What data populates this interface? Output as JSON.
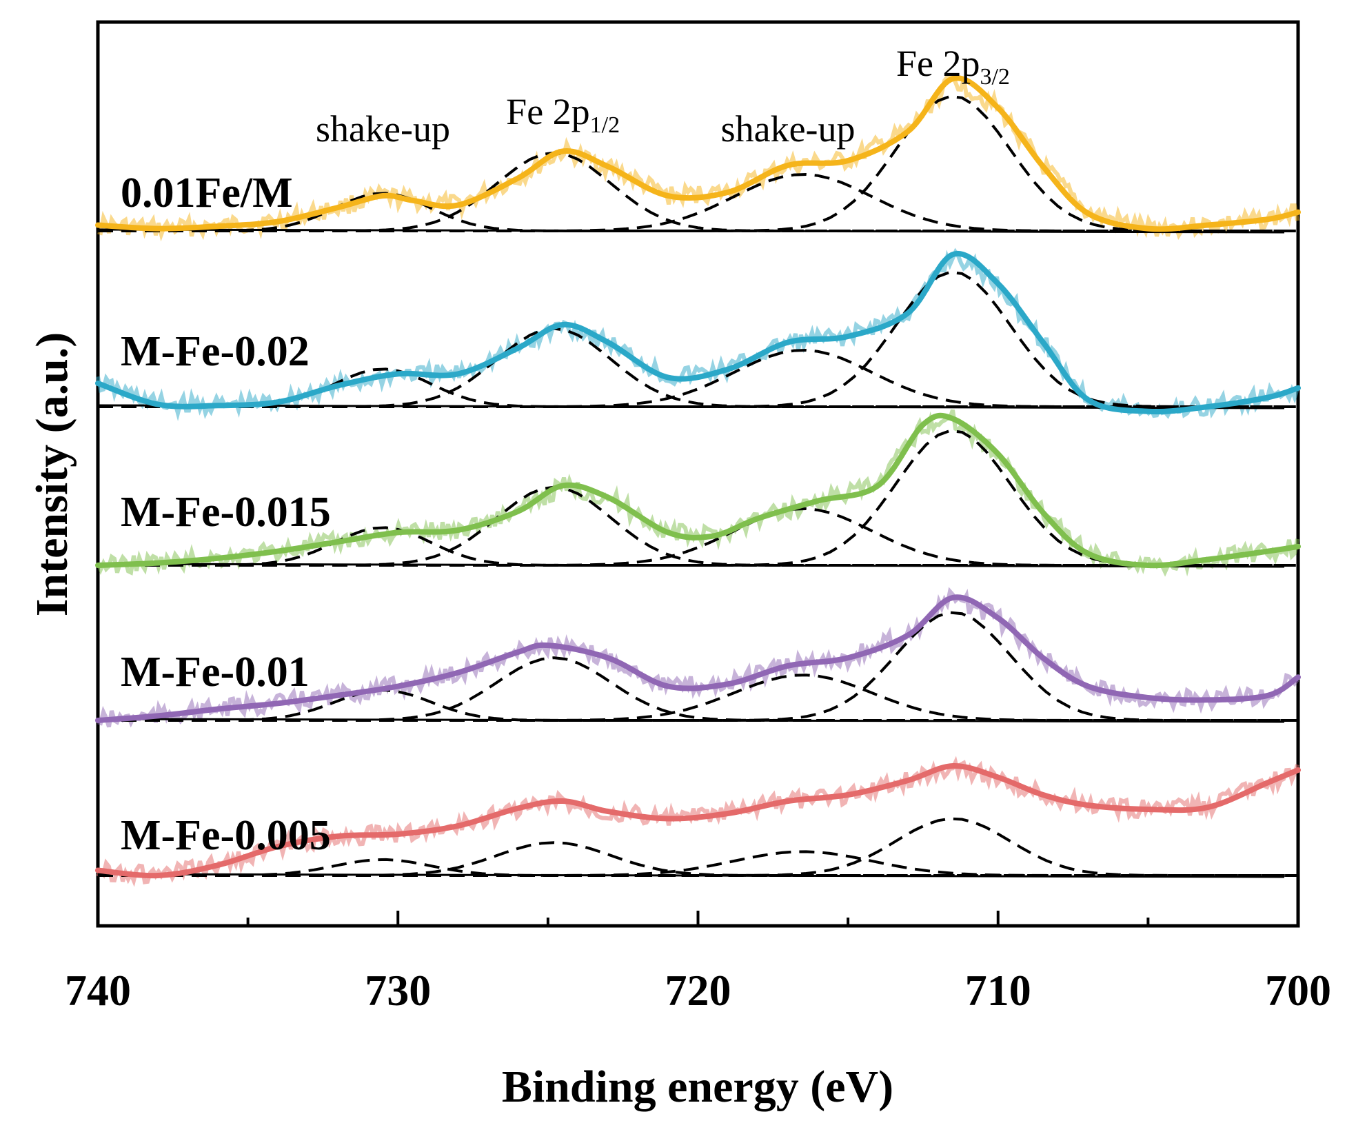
{
  "chart_data": {
    "type": "line",
    "xlabel": "Binding energy (eV)",
    "ylabel": "Intensity (a.u.)",
    "xlim": [
      740,
      700
    ],
    "x_reversed": true,
    "y_ticks": "none",
    "x_ticks": [
      740,
      730,
      720,
      710,
      700
    ],
    "x_tick_labels": [
      "740",
      "730",
      "720",
      "710",
      "700"
    ],
    "grid": false,
    "peak_annotations": [
      {
        "base": "shake-up",
        "sub": "",
        "x": 730.5
      },
      {
        "base": "Fe 2p",
        "sub": "1/2",
        "x": 724.5
      },
      {
        "base": "shake-up",
        "sub": "",
        "x": 717.0
      },
      {
        "base": "Fe 2p",
        "sub": "3/2",
        "x": 711.5
      }
    ],
    "series": [
      {
        "name": "0.01Fe/M",
        "color": "#F5B41A",
        "baseline": 0.0,
        "points": [
          [
            740,
            0.05
          ],
          [
            738,
            0.02
          ],
          [
            736,
            0.04
          ],
          [
            734,
            0.08
          ],
          [
            732,
            0.2
          ],
          [
            730.5,
            0.3
          ],
          [
            729.5,
            0.26
          ],
          [
            728,
            0.22
          ],
          [
            726,
            0.45
          ],
          [
            724.5,
            0.68
          ],
          [
            723,
            0.55
          ],
          [
            721,
            0.3
          ],
          [
            719,
            0.33
          ],
          [
            717,
            0.56
          ],
          [
            715,
            0.6
          ],
          [
            713,
            0.85
          ],
          [
            711.5,
            1.3
          ],
          [
            710,
            1.05
          ],
          [
            708.5,
            0.55
          ],
          [
            707,
            0.15
          ],
          [
            705,
            0.02
          ],
          [
            703,
            0.05
          ],
          [
            701,
            0.1
          ],
          [
            700,
            0.16
          ]
        ]
      },
      {
        "name": "M-Fe-0.02",
        "color": "#2BA8C8",
        "baseline": 0.0,
        "points": [
          [
            740,
            0.2
          ],
          [
            738,
            0.02
          ],
          [
            736,
            0.01
          ],
          [
            734,
            0.04
          ],
          [
            732,
            0.18
          ],
          [
            730,
            0.28
          ],
          [
            728,
            0.28
          ],
          [
            726,
            0.5
          ],
          [
            724.5,
            0.7
          ],
          [
            723,
            0.55
          ],
          [
            721,
            0.25
          ],
          [
            719,
            0.32
          ],
          [
            717,
            0.55
          ],
          [
            715,
            0.6
          ],
          [
            713,
            0.8
          ],
          [
            711.5,
            1.3
          ],
          [
            710,
            1.05
          ],
          [
            708.5,
            0.55
          ],
          [
            707,
            0.06
          ],
          [
            705,
            -0.04
          ],
          [
            703,
            0.0
          ],
          [
            701,
            0.08
          ],
          [
            700,
            0.16
          ]
        ]
      },
      {
        "name": "M-Fe-0.015",
        "color": "#7FBF4D",
        "baseline": 0.0,
        "points": [
          [
            740,
            0.0
          ],
          [
            738,
            0.02
          ],
          [
            736,
            0.06
          ],
          [
            734,
            0.12
          ],
          [
            732,
            0.2
          ],
          [
            730,
            0.28
          ],
          [
            728,
            0.3
          ],
          [
            726,
            0.46
          ],
          [
            724.5,
            0.68
          ],
          [
            723,
            0.58
          ],
          [
            721,
            0.28
          ],
          [
            719.5,
            0.25
          ],
          [
            718,
            0.4
          ],
          [
            716,
            0.55
          ],
          [
            714,
            0.68
          ],
          [
            712.5,
            1.2
          ],
          [
            711.5,
            1.25
          ],
          [
            710,
            0.95
          ],
          [
            708.5,
            0.45
          ],
          [
            707,
            0.1
          ],
          [
            705,
            0.0
          ],
          [
            703,
            0.05
          ],
          [
            701,
            0.12
          ],
          [
            700,
            0.16
          ]
        ]
      },
      {
        "name": "M-Fe-0.01",
        "color": "#9067B4",
        "baseline": 0.0,
        "points": [
          [
            740,
            0.0
          ],
          [
            738,
            0.04
          ],
          [
            736,
            0.1
          ],
          [
            734,
            0.15
          ],
          [
            732,
            0.22
          ],
          [
            730,
            0.3
          ],
          [
            728,
            0.42
          ],
          [
            726,
            0.6
          ],
          [
            725,
            0.66
          ],
          [
            723,
            0.55
          ],
          [
            721,
            0.3
          ],
          [
            719,
            0.32
          ],
          [
            717,
            0.48
          ],
          [
            715,
            0.55
          ],
          [
            713,
            0.75
          ],
          [
            711.5,
            1.08
          ],
          [
            710,
            0.9
          ],
          [
            708.5,
            0.55
          ],
          [
            707,
            0.3
          ],
          [
            705,
            0.2
          ],
          [
            703,
            0.18
          ],
          [
            701,
            0.22
          ],
          [
            700,
            0.38
          ]
        ]
      },
      {
        "name": "M-Fe-0.005",
        "color": "#E46A6A",
        "baseline": 0.0,
        "points": [
          [
            740,
            0.05
          ],
          [
            738,
            0.0
          ],
          [
            736,
            0.1
          ],
          [
            734,
            0.28
          ],
          [
            732,
            0.38
          ],
          [
            730,
            0.4
          ],
          [
            728,
            0.48
          ],
          [
            726,
            0.65
          ],
          [
            724.5,
            0.72
          ],
          [
            723,
            0.62
          ],
          [
            721,
            0.55
          ],
          [
            719,
            0.6
          ],
          [
            717,
            0.72
          ],
          [
            715,
            0.78
          ],
          [
            713,
            0.92
          ],
          [
            711.5,
            1.06
          ],
          [
            710,
            0.95
          ],
          [
            708.5,
            0.78
          ],
          [
            707,
            0.68
          ],
          [
            705,
            0.64
          ],
          [
            703,
            0.66
          ],
          [
            701,
            0.9
          ],
          [
            700,
            1.02
          ]
        ]
      }
    ]
  }
}
